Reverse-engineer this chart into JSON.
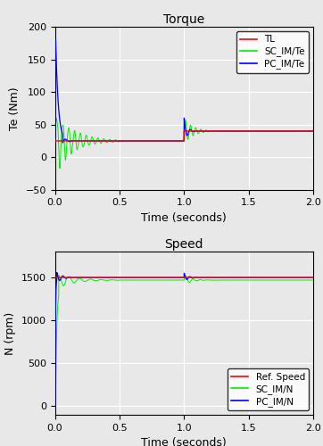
{
  "title_torque": "Torque",
  "title_speed": "Speed",
  "xlabel": "Time (seconds)",
  "ylabel_torque": "Te (Nm)",
  "ylabel_speed": "N (rpm)",
  "torque_ylim": [
    -50,
    200
  ],
  "torque_yticks": [
    -50,
    0,
    50,
    100,
    150,
    200
  ],
  "speed_ylim": [
    -100,
    1800
  ],
  "speed_yticks": [
    0,
    500,
    1000,
    1500
  ],
  "xlim": [
    0,
    2
  ],
  "xticks": [
    0,
    0.5,
    1.0,
    1.5,
    2.0
  ],
  "torque_TL_step1": 25,
  "torque_TL_step2": 40,
  "torque_step_time": 1.0,
  "speed_ref": 1500,
  "color_red": "#FF0000",
  "color_green": "#00EE00",
  "color_blue": "#0000FF",
  "legend_torque": [
    "TL",
    "SC_IM/Te",
    "PC_IM/Te"
  ],
  "legend_speed": [
    "Ref. Speed",
    "SC_IM/N",
    "PC_IM/N"
  ],
  "background_color": "#e8e8e8",
  "grid_color": "#ffffff",
  "sc_speed_steady": 1470,
  "pc_speed_steady": 1500
}
